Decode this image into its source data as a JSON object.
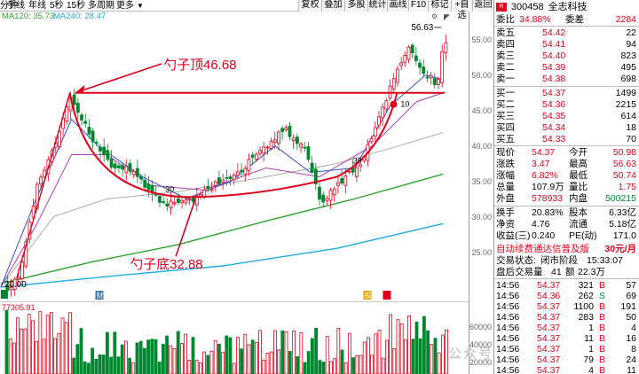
{
  "toolbar": {
    "left_items": [
      "分钟",
      "手线",
      "年线",
      "5秒",
      "15秒",
      "多周期",
      "更多"
    ],
    "buttons": [
      "复权",
      "叠加",
      "多股",
      "统计",
      "画线",
      "F10",
      "标记",
      "+自选",
      "返回"
    ]
  },
  "ma_legend": {
    "ma120": "MA120: 35.73",
    "ma240": "MA240: 28.47"
  },
  "chart": {
    "price_max_label": "56.63",
    "price_low_label": "20.00",
    "cup_top_label": "勺子顶46.68",
    "cup_bottom_label": "勺子底32.88",
    "inline_labels": [
      "30",
      "30",
      "10"
    ],
    "volume_label": "77305.91",
    "yaxis_labels": [
      "55.00",
      "50.00",
      "45.00",
      "40.00",
      "35.00",
      "30.00",
      "25.00"
    ],
    "vol_yaxis_labels": [
      "60000",
      "40000",
      "20000"
    ],
    "marker_labels": [
      "财",
      "股"
    ]
  },
  "colors": {
    "up": "#e0001a",
    "down": "#00862f",
    "ma120": "#2aa62a",
    "ma240": "#20a8e0",
    "annotation": "#e0001a"
  },
  "stock": {
    "code": "300458",
    "name": "全志科技",
    "badge": "R"
  },
  "order_book": {
    "ratio_label": "委比",
    "ratio_value": "34.88%",
    "diff_label": "委差",
    "diff_value": "2284",
    "asks": [
      {
        "label": "卖五",
        "price": "54.42",
        "vol": "22"
      },
      {
        "label": "卖四",
        "price": "54.41",
        "vol": "94"
      },
      {
        "label": "卖三",
        "price": "54.40",
        "vol": "823"
      },
      {
        "label": "卖二",
        "price": "54.39",
        "vol": "495"
      },
      {
        "label": "卖一",
        "price": "54.38",
        "vol": "698"
      }
    ],
    "bids": [
      {
        "label": "买一",
        "price": "54.37",
        "vol": "1499"
      },
      {
        "label": "买二",
        "price": "54.36",
        "vol": "2215"
      },
      {
        "label": "买三",
        "price": "54.35",
        "vol": "614"
      },
      {
        "label": "买四",
        "price": "54.34",
        "vol": "18"
      },
      {
        "label": "买五",
        "price": "54.33",
        "vol": "70"
      }
    ]
  },
  "quote": {
    "rows": [
      {
        "l1": "现价",
        "v1": "54.37",
        "l2": "今开",
        "v2": "50.98"
      },
      {
        "l1": "涨跌",
        "v1": "3.47",
        "l2": "最高",
        "v2": "56.63"
      },
      {
        "l1": "涨幅",
        "v1": "6.82%",
        "l2": "最低",
        "v2": "50.74"
      },
      {
        "l1": "总量",
        "v1": "107.9万",
        "l2": "量比",
        "v2": "1.75"
      },
      {
        "l1": "外盘",
        "v1": "578933",
        "l2": "内盘",
        "v2": "500215"
      }
    ],
    "rows2": [
      {
        "l1": "换手",
        "v1": "20.83%",
        "l2": "股本",
        "v2": "6.33亿"
      },
      {
        "l1": "净资",
        "v1": "4.76",
        "l2": "流通",
        "v2": "5.18亿"
      },
      {
        "l1": "收益(三)",
        "v1": "0.240",
        "l2": "PE(动)",
        "v2": "171.0"
      }
    ]
  },
  "promo": {
    "text": "自动续费通达信普及版",
    "price": "30元/月"
  },
  "status": {
    "label": "交易状态:",
    "state": "闭市阶段",
    "time": "15:33:07",
    "after_label": "盘后交易量",
    "after_vol": "41",
    "amount_label": "额",
    "amount_val": "22.3万"
  },
  "ticks": [
    {
      "time": "14:56",
      "price": "54.37",
      "vol": "321",
      "side": "B",
      "num": "57"
    },
    {
      "time": "14:56",
      "price": "54.36",
      "vol": "262",
      "side": "S",
      "num": "69"
    },
    {
      "time": "14:56",
      "price": "54.37",
      "vol": "1100",
      "side": "B",
      "num": "191"
    },
    {
      "time": "14:56",
      "price": "54.37",
      "vol": "283",
      "side": "B",
      "num": "50"
    },
    {
      "time": "14:56",
      "price": "54.37",
      "vol": "1",
      "side": "B",
      "num": "4"
    },
    {
      "time": "14:56",
      "price": "54.37",
      "vol": "11",
      "side": "B",
      "num": "16"
    },
    {
      "time": "14:56",
      "price": "54.37",
      "vol": "1",
      "side": "B",
      "num": "8"
    },
    {
      "time": "14:56",
      "price": "54.37",
      "vol": "79",
      "side": "B",
      "num": "24"
    },
    {
      "time": "14:56",
      "price": "54.37",
      "vol": "4",
      "side": "B",
      "num": "11"
    }
  ],
  "watermark": "公众号·一古胖子"
}
